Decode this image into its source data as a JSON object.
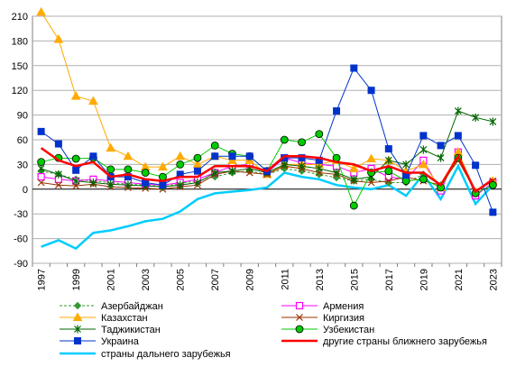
{
  "chart_data": {
    "type": "line",
    "title": "",
    "xlabel": "",
    "ylabel": "",
    "ylim": [
      -90,
      210
    ],
    "yticks": [
      -90,
      -60,
      -30,
      0,
      30,
      60,
      90,
      120,
      150,
      180,
      210
    ],
    "xticks": [
      1997,
      1999,
      2001,
      2003,
      2005,
      2007,
      2009,
      2011,
      2013,
      2015,
      2017,
      2019,
      2021,
      2023
    ],
    "x": [
      1997,
      1998,
      1999,
      2000,
      2001,
      2002,
      2003,
      2004,
      2005,
      2006,
      2007,
      2008,
      2009,
      2010,
      2011,
      2012,
      2013,
      2014,
      2015,
      2016,
      2017,
      2018,
      2019,
      2020,
      2021,
      2022,
      2023
    ],
    "grid": "horizontal",
    "legend_position": "bottom",
    "series": [
      {
        "name": "Азербайджан",
        "color": "#339933",
        "marker": "diamond",
        "dashed": true,
        "values": [
          22,
          18,
          12,
          10,
          8,
          6,
          5,
          3,
          7,
          10,
          15,
          20,
          22,
          18,
          25,
          22,
          18,
          14,
          10,
          12,
          8,
          8,
          18,
          5,
          40,
          -5,
          5
        ]
      },
      {
        "name": "Армения",
        "color": "#ff00ff",
        "marker": "square-open",
        "values": [
          15,
          12,
          10,
          12,
          10,
          8,
          6,
          5,
          8,
          12,
          20,
          28,
          30,
          20,
          38,
          32,
          30,
          28,
          20,
          25,
          15,
          12,
          35,
          -2,
          45,
          -8,
          8
        ]
      },
      {
        "name": "Казахстан",
        "color": "#ffaa00",
        "marker": "triangle",
        "values": [
          215,
          182,
          113,
          107,
          50,
          40,
          27,
          27,
          40,
          30,
          40,
          35,
          35,
          18,
          30,
          30,
          30,
          35,
          25,
          37,
          35,
          22,
          30,
          2,
          45,
          -3,
          10
        ]
      },
      {
        "name": "Киргизия",
        "color": "#993300",
        "marker": "x",
        "values": [
          8,
          5,
          4,
          6,
          3,
          2,
          1,
          0,
          3,
          5,
          18,
          22,
          20,
          18,
          28,
          25,
          20,
          18,
          10,
          8,
          10,
          15,
          10,
          5,
          35,
          -3,
          10
        ]
      },
      {
        "name": "Таджикистан",
        "color": "#006600",
        "marker": "star",
        "values": [
          25,
          18,
          10,
          8,
          6,
          5,
          4,
          3,
          5,
          8,
          20,
          22,
          25,
          20,
          30,
          28,
          25,
          20,
          12,
          15,
          35,
          30,
          48,
          38,
          95,
          87,
          82
        ]
      },
      {
        "name": "Узбекистан",
        "color": "#00cc00",
        "marker": "circle",
        "values": [
          33,
          38,
          37,
          38,
          24,
          24,
          20,
          15,
          30,
          38,
          53,
          43,
          40,
          22,
          60,
          57,
          67,
          38,
          -20,
          20,
          22,
          10,
          12,
          2,
          38,
          -5,
          5
        ]
      },
      {
        "name": "Украина",
        "color": "#0033cc",
        "marker": "square",
        "values": [
          70,
          55,
          23,
          40,
          15,
          15,
          8,
          5,
          18,
          22,
          40,
          40,
          40,
          22,
          38,
          38,
          35,
          95,
          147,
          120,
          49,
          17,
          65,
          53,
          65,
          29,
          -28
        ]
      },
      {
        "name": "другие страны ближнего зарубежья",
        "color": "#ff0000",
        "marker": "none",
        "values": [
          50,
          35,
          28,
          33,
          15,
          18,
          12,
          10,
          15,
          15,
          28,
          28,
          28,
          22,
          40,
          40,
          38,
          33,
          30,
          22,
          28,
          20,
          20,
          5,
          40,
          -3,
          12
        ]
      },
      {
        "name": "страны дальнего зарубежья",
        "color": "#00ccff",
        "marker": "none",
        "thick": true,
        "values": [
          -70,
          -62,
          -72,
          -53,
          -50,
          -45,
          -39,
          -36,
          -27,
          -12,
          -5,
          -3,
          -1,
          2,
          20,
          15,
          12,
          5,
          2,
          0,
          5,
          -8,
          18,
          -12,
          28,
          -18,
          5
        ]
      }
    ]
  }
}
